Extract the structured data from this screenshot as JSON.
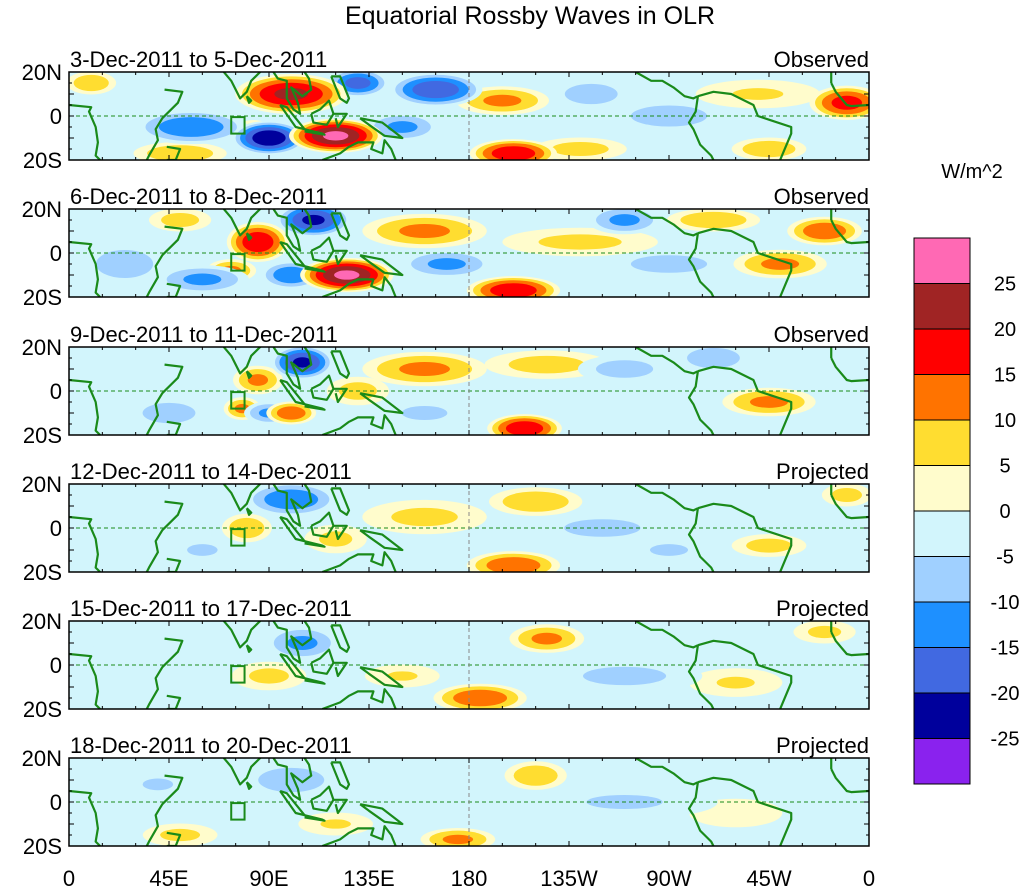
{
  "chart_data": {
    "type": "heatmap",
    "title": "Equatorial Rossby Waves in OLR",
    "units": "W/m^2",
    "colorbar": {
      "levels": [
        25,
        20,
        15,
        10,
        5,
        0,
        -5,
        -10,
        -15,
        -20,
        -25
      ],
      "level_labels": [
        "25",
        "20",
        "15",
        "10",
        "5",
        "0",
        "-5",
        "-10",
        "-15",
        "-20",
        "-25"
      ],
      "colors": [
        "#ff69b4",
        "#a02424",
        "#ff0000",
        "#ff7300",
        "#ffdd30",
        "#fffccc",
        "#d2f5fc",
        "#a0d0ff",
        "#1e90ff",
        "#4169e1",
        "#00009c",
        "#8a22ee"
      ]
    },
    "y_ticks": [
      "20N",
      "0",
      "20S"
    ],
    "x_ticks": [
      "0",
      "45E",
      "90E",
      "135E",
      "180",
      "135W",
      "90W",
      "45W",
      "0"
    ],
    "x_tick_lons": [
      0,
      45,
      90,
      135,
      180,
      225,
      270,
      315,
      360
    ],
    "lat_range": [
      -20,
      20
    ],
    "lon_range": [
      0,
      360
    ],
    "panels": [
      {
        "date": "3-Dec-2011 to 5-Dec-2011",
        "type": "Observed",
        "anomalies": [
          [
            100,
            10,
            22,
            18,
            7
          ],
          [
            120,
            -9,
            27,
            15,
            6
          ],
          [
            200,
            -17,
            20,
            14,
            5
          ],
          [
            350,
            6,
            18,
            12,
            6
          ],
          [
            195,
            7,
            12,
            15,
            5
          ],
          [
            83,
            -7,
            10,
            6,
            4
          ],
          [
            50,
            -17,
            10,
            15,
            4
          ],
          [
            230,
            -15,
            8,
            15,
            4
          ],
          [
            315,
            -15,
            10,
            12,
            4
          ],
          [
            10,
            15,
            10,
            8,
            4
          ],
          [
            310,
            10,
            6,
            20,
            5
          ],
          [
            90,
            -10,
            -25,
            12,
            6
          ],
          [
            55,
            -5,
            -15,
            18,
            6
          ],
          [
            165,
            12,
            -20,
            15,
            6
          ],
          [
            150,
            -5,
            -12,
            12,
            5
          ],
          [
            130,
            15,
            -18,
            10,
            5
          ],
          [
            235,
            10,
            -10,
            12,
            5
          ],
          [
            270,
            0,
            -8,
            20,
            6
          ],
          [
            85,
            8,
            -12,
            8,
            4
          ]
        ]
      },
      {
        "date": "6-Dec-2011 to 8-Dec-2011",
        "type": "Observed",
        "anomalies": [
          [
            85,
            5,
            20,
            10,
            7
          ],
          [
            125,
            -10,
            27,
            15,
            6
          ],
          [
            160,
            10,
            12,
            20,
            6
          ],
          [
            200,
            -17,
            20,
            15,
            5
          ],
          [
            73,
            -8,
            12,
            8,
            4
          ],
          [
            320,
            -5,
            12,
            15,
            5
          ],
          [
            340,
            10,
            15,
            12,
            5
          ],
          [
            290,
            15,
            10,
            15,
            4
          ],
          [
            50,
            15,
            8,
            10,
            4
          ],
          [
            230,
            5,
            7,
            25,
            5
          ],
          [
            110,
            15,
            -22,
            12,
            6
          ],
          [
            100,
            -10,
            -15,
            10,
            5
          ],
          [
            60,
            -12,
            -12,
            15,
            5
          ],
          [
            170,
            -5,
            -12,
            15,
            5
          ],
          [
            250,
            15,
            -12,
            12,
            5
          ],
          [
            270,
            -5,
            -8,
            20,
            5
          ],
          [
            25,
            -5,
            -8,
            15,
            8
          ]
        ]
      },
      {
        "date": "9-Dec-2011 to 11-Dec-2011",
        "type": "Observed",
        "anomalies": [
          [
            85,
            5,
            12,
            8,
            5
          ],
          [
            100,
            -10,
            15,
            8,
            4
          ],
          [
            78,
            -8,
            12,
            6,
            4
          ],
          [
            160,
            10,
            12,
            20,
            6
          ],
          [
            205,
            -17,
            20,
            12,
            5
          ],
          [
            215,
            12,
            8,
            20,
            5
          ],
          [
            315,
            -5,
            12,
            15,
            5
          ],
          [
            130,
            0,
            8,
            10,
            5
          ],
          [
            105,
            13,
            -22,
            10,
            6
          ],
          [
            90,
            -10,
            -12,
            8,
            4
          ],
          [
            45,
            -10,
            -10,
            12,
            5
          ],
          [
            250,
            10,
            -8,
            15,
            5
          ],
          [
            290,
            15,
            -10,
            12,
            5
          ],
          [
            160,
            -10,
            -8,
            12,
            4
          ]
        ]
      },
      {
        "date": "12-Dec-2011 to 14-Dec-2011",
        "type": "Projected",
        "anomalies": [
          [
            80,
            0,
            10,
            8,
            5
          ],
          [
            200,
            -17,
            15,
            15,
            5
          ],
          [
            210,
            12,
            10,
            15,
            5
          ],
          [
            315,
            -8,
            8,
            12,
            4
          ],
          [
            160,
            5,
            7,
            20,
            6
          ],
          [
            120,
            -5,
            7,
            10,
            5
          ],
          [
            350,
            15,
            8,
            8,
            4
          ],
          [
            100,
            13,
            -15,
            15,
            6
          ],
          [
            240,
            0,
            -8,
            20,
            5
          ],
          [
            60,
            -10,
            -6,
            12,
            5
          ],
          [
            270,
            -10,
            -6,
            15,
            5
          ]
        ]
      },
      {
        "date": "15-Dec-2011 to 17-Dec-2011",
        "type": "Projected",
        "anomalies": [
          [
            215,
            12,
            12,
            12,
            5
          ],
          [
            185,
            -15,
            15,
            15,
            5
          ],
          [
            90,
            -5,
            7,
            12,
            5
          ],
          [
            340,
            15,
            7,
            10,
            4
          ],
          [
            300,
            -8,
            6,
            15,
            5
          ],
          [
            150,
            -5,
            6,
            12,
            4
          ],
          [
            105,
            10,
            -12,
            12,
            6
          ],
          [
            250,
            -5,
            -7,
            25,
            6
          ],
          [
            30,
            5,
            -5,
            15,
            6
          ]
        ]
      },
      {
        "date": "18-Dec-2011 to 20-Dec-2011",
        "type": "Projected",
        "anomalies": [
          [
            210,
            12,
            10,
            10,
            5
          ],
          [
            175,
            -17,
            12,
            12,
            4
          ],
          [
            120,
            -10,
            6,
            12,
            4
          ],
          [
            50,
            -15,
            7,
            12,
            4
          ],
          [
            300,
            -5,
            5,
            15,
            5
          ],
          [
            100,
            10,
            -10,
            15,
            6
          ],
          [
            250,
            0,
            -6,
            30,
            6
          ],
          [
            40,
            8,
            -6,
            12,
            5
          ]
        ]
      }
    ]
  }
}
